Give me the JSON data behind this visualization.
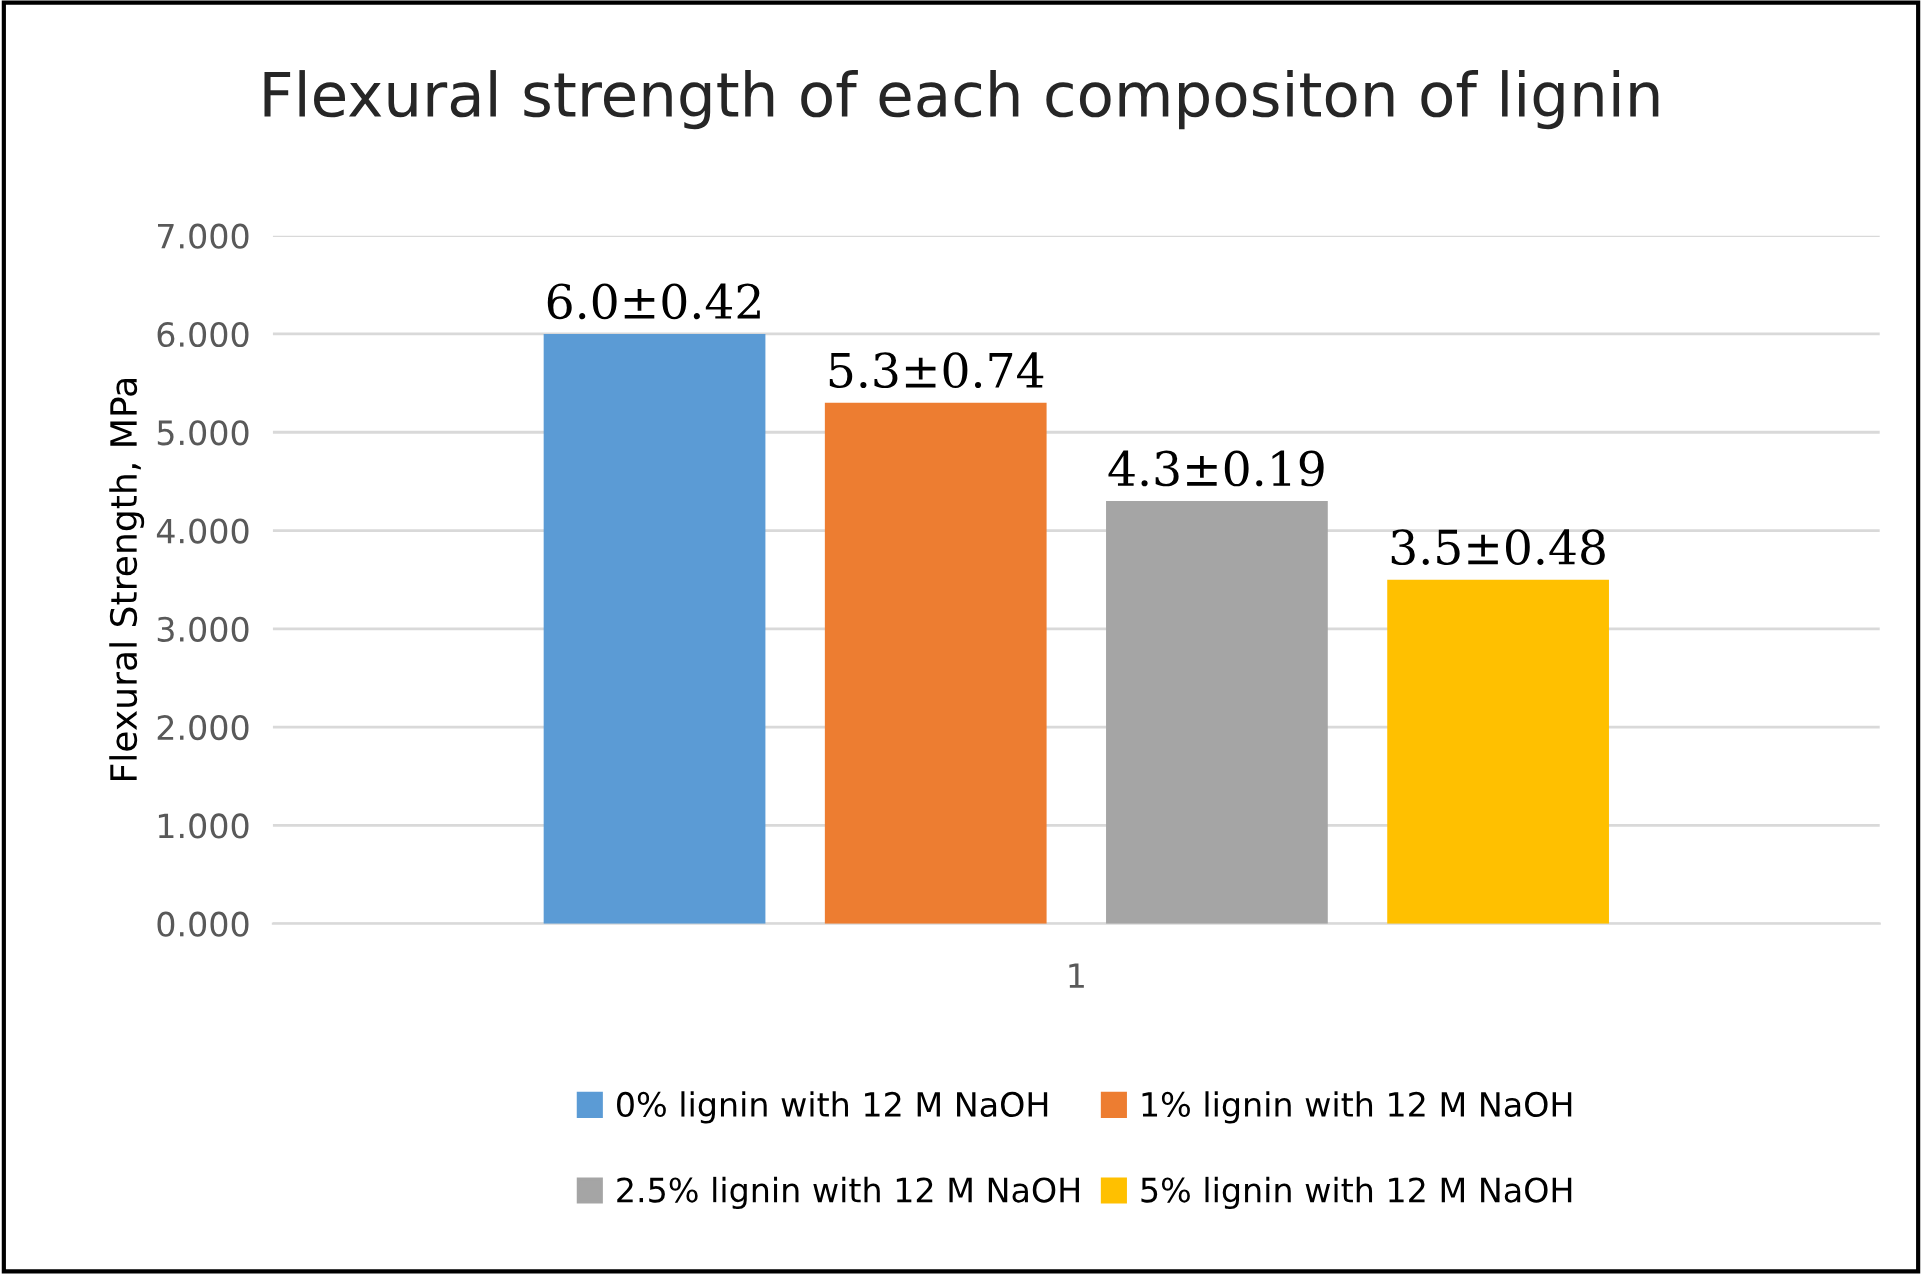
{
  "chart_data": {
    "type": "bar",
    "title": "Flexural strength of each compositon of lignin",
    "ylabel": "Flexural Strength, MPa",
    "categories": [
      "1"
    ],
    "series": [
      {
        "name": "0% lignin with 12 M NaOH",
        "color": "#5b9bd5",
        "values": [
          6.0
        ],
        "value_labels": [
          "6.0±0.42"
        ]
      },
      {
        "name": "1% lignin with 12 M NaOH",
        "color": "#ed7d31",
        "values": [
          5.3
        ],
        "value_labels": [
          "5.3±0.74"
        ]
      },
      {
        "name": "2.5% lignin with 12 M NaOH",
        "color": "#a5a5a5",
        "values": [
          4.3
        ],
        "value_labels": [
          "4.3±0.19"
        ]
      },
      {
        "name": "5% lignin with 12 M NaOH",
        "color": "#ffc000",
        "values": [
          3.5
        ],
        "value_labels": [
          "3.5±0.48"
        ]
      }
    ],
    "ylim": [
      0,
      7
    ],
    "yticks": [
      {
        "value": 0,
        "label": "0.000"
      },
      {
        "value": 1,
        "label": "1.000"
      },
      {
        "value": 2,
        "label": "2.000"
      },
      {
        "value": 3,
        "label": "3.000"
      },
      {
        "value": 4,
        "label": "4.000"
      },
      {
        "value": 5,
        "label": "5.000"
      },
      {
        "value": 6,
        "label": "6.000"
      },
      {
        "value": 7,
        "label": "7.000"
      }
    ],
    "grid": "y",
    "legend": "bottom"
  }
}
